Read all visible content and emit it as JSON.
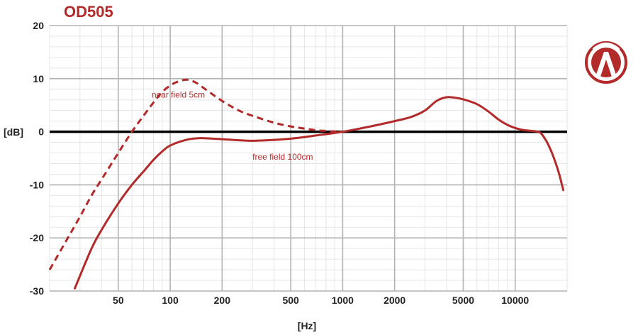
{
  "chart_data": {
    "type": "line",
    "title": "OD505",
    "xlabel": "[Hz]",
    "ylabel": "[dB]",
    "x_scale": "log",
    "xlim": [
      20,
      20000
    ],
    "ylim": [
      -30,
      20
    ],
    "grid": true,
    "xticks": [
      50,
      100,
      200,
      500,
      1000,
      2000,
      5000,
      10000
    ],
    "xtick_labels": [
      "50",
      "100",
      "200",
      "500",
      "1000",
      "2000",
      "5000",
      "10000"
    ],
    "yticks": [
      20,
      10,
      0,
      -10,
      -20,
      -30
    ],
    "ytick_labels": [
      "20",
      "10",
      "0",
      "-10",
      "-20",
      "-30"
    ],
    "series": [
      {
        "name": "near field 5cm",
        "style": "dashed",
        "x": [
          20,
          25,
          30,
          35,
          40,
          50,
          60,
          70,
          80,
          90,
          100,
          110,
          125,
          140,
          160,
          200,
          250,
          300,
          400,
          500,
          600,
          700,
          800,
          900,
          1000
        ],
        "y": [
          -26,
          -20.5,
          -16,
          -12,
          -9,
          -4,
          0,
          3,
          5.5,
          7.5,
          8.7,
          9.4,
          9.8,
          9.3,
          8,
          5.8,
          4,
          3,
          1.7,
          1,
          0.6,
          0.3,
          0.15,
          0.05,
          0
        ]
      },
      {
        "name": "free field 100cm",
        "style": "solid",
        "x": [
          28,
          35,
          40,
          50,
          60,
          70,
          80,
          90,
          100,
          125,
          150,
          200,
          300,
          500,
          700,
          1000,
          1500,
          2000,
          2500,
          3000,
          3500,
          4000,
          4500,
          5000,
          6000,
          7000,
          8000,
          9000,
          10000,
          11000,
          12000,
          13000,
          14000,
          15000,
          16000,
          17000,
          18000,
          19000
        ],
        "y": [
          -29.5,
          -22,
          -18.5,
          -13.5,
          -10,
          -7.5,
          -5.3,
          -3.7,
          -2.6,
          -1.5,
          -1.2,
          -1.4,
          -1.7,
          -1.3,
          -0.7,
          0,
          1.1,
          2,
          2.8,
          4,
          5.8,
          6.5,
          6.4,
          6.1,
          5.2,
          3.8,
          2.3,
          1.3,
          0.7,
          0.35,
          0.2,
          0.1,
          -0.2,
          -1.5,
          -3.3,
          -5.5,
          -8,
          -11
        ]
      }
    ],
    "annotations": [
      {
        "text": "near field 5cm",
        "x": 78,
        "y": 6.4
      },
      {
        "text": "free field 100cm",
        "x": 300,
        "y": -5.3
      }
    ],
    "colors": {
      "curve": "#b22a2a",
      "grid": "#b3b3b3",
      "minor_grid": "#e6e6e6",
      "zero_line": "#000000",
      "title": "#b22a2a"
    }
  },
  "logo": {
    "name": "brand-logo-icon"
  }
}
